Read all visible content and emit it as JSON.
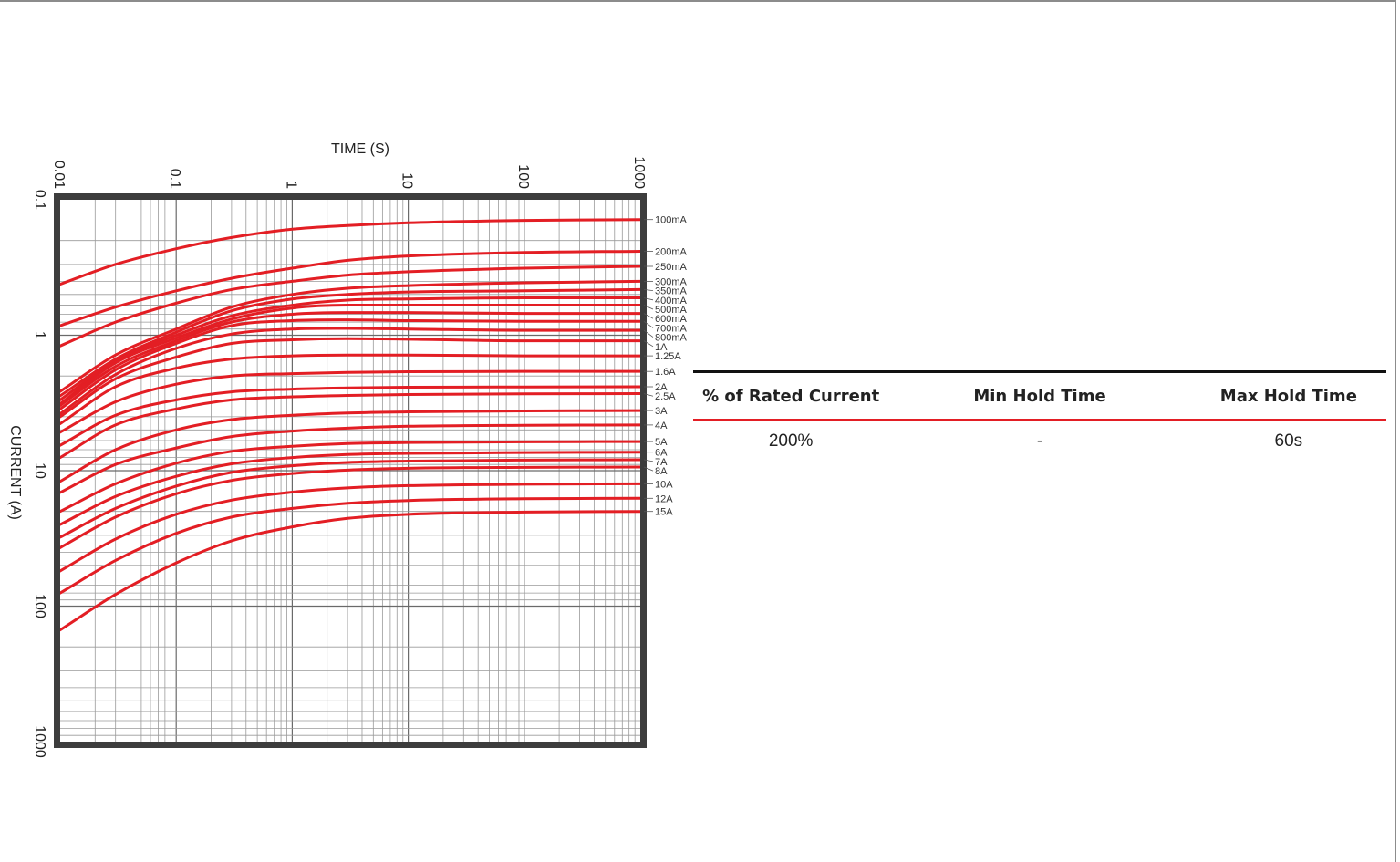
{
  "chart_data": {
    "type": "line",
    "xlabel": "TIME (S)",
    "ylabel": "CURRENT (A)",
    "x_scale": "log",
    "y_scale": "log",
    "y_inverted": true,
    "xlim": [
      0.01,
      1000
    ],
    "ylim": [
      0.1,
      1000
    ],
    "x_ticks": [
      "0.01",
      "0.1",
      "1",
      "10",
      "100",
      "1000"
    ],
    "y_ticks": [
      "0.1",
      "1",
      "10",
      "100",
      "1000"
    ],
    "grid": true,
    "curve_color": "#e31e24",
    "x": [
      0.01,
      0.03,
      0.1,
      0.3,
      1,
      3,
      10,
      100,
      1000
    ],
    "series": [
      {
        "name": "100mA",
        "values": [
          0.42,
          0.3,
          0.23,
          0.19,
          0.165,
          0.155,
          0.148,
          0.142,
          0.14
        ]
      },
      {
        "name": "200mA",
        "values": [
          0.85,
          0.62,
          0.47,
          0.38,
          0.32,
          0.28,
          0.26,
          0.245,
          0.24
        ]
      },
      {
        "name": "250mA",
        "values": [
          1.2,
          0.8,
          0.58,
          0.46,
          0.4,
          0.36,
          0.34,
          0.32,
          0.31
        ]
      },
      {
        "name": "300mA",
        "values": [
          2.6,
          1.4,
          0.9,
          0.62,
          0.5,
          0.45,
          0.43,
          0.41,
          0.4
        ]
      },
      {
        "name": "350mA",
        "values": [
          2.8,
          1.5,
          0.95,
          0.66,
          0.54,
          0.5,
          0.48,
          0.47,
          0.46
        ]
      },
      {
        "name": "400mA",
        "values": [
          3.0,
          1.55,
          1.0,
          0.72,
          0.6,
          0.55,
          0.54,
          0.53,
          0.53
        ]
      },
      {
        "name": "500mA",
        "values": [
          3.2,
          1.6,
          1.05,
          0.76,
          0.63,
          0.6,
          0.6,
          0.6,
          0.6
        ]
      },
      {
        "name": "600mA",
        "values": [
          3.3,
          1.7,
          1.1,
          0.8,
          0.7,
          0.68,
          0.68,
          0.69,
          0.69
        ]
      },
      {
        "name": "700mA",
        "values": [
          3.5,
          1.8,
          1.15,
          0.85,
          0.78,
          0.77,
          0.78,
          0.79,
          0.79
        ]
      },
      {
        "name": "800mA",
        "values": [
          3.8,
          1.95,
          1.25,
          0.98,
          0.9,
          0.89,
          0.9,
          0.92,
          0.92
        ]
      },
      {
        "name": "1A",
        "values": [
          4.0,
          2.1,
          1.45,
          1.15,
          1.08,
          1.06,
          1.07,
          1.1,
          1.1
        ]
      },
      {
        "name": "1.25A",
        "values": [
          4.5,
          2.4,
          1.75,
          1.5,
          1.42,
          1.4,
          1.4,
          1.42,
          1.42
        ]
      },
      {
        "name": "1.6A",
        "values": [
          5.2,
          3.1,
          2.3,
          2.0,
          1.92,
          1.88,
          1.86,
          1.85,
          1.85
        ]
      },
      {
        "name": "2A",
        "values": [
          6.5,
          3.9,
          3.0,
          2.62,
          2.5,
          2.45,
          2.42,
          2.41,
          2.4
        ]
      },
      {
        "name": "2.5A",
        "values": [
          8.0,
          4.6,
          3.5,
          3.0,
          2.85,
          2.78,
          2.74,
          2.71,
          2.7
        ]
      },
      {
        "name": "3A",
        "values": [
          12.0,
          7.0,
          5.0,
          4.2,
          3.9,
          3.75,
          3.68,
          3.62,
          3.6
        ]
      },
      {
        "name": "4A",
        "values": [
          14.5,
          9.0,
          6.8,
          5.6,
          5.1,
          4.85,
          4.7,
          4.62,
          4.6
        ]
      },
      {
        "name": "5A",
        "values": [
          20.0,
          12.5,
          8.8,
          7.2,
          6.6,
          6.3,
          6.2,
          6.12,
          6.1
        ]
      },
      {
        "name": "6A",
        "values": [
          25.0,
          15.5,
          11.0,
          8.9,
          8.0,
          7.6,
          7.45,
          7.35,
          7.3
        ]
      },
      {
        "name": "7A",
        "values": [
          31.0,
          19.0,
          13.0,
          10.3,
          9.2,
          8.7,
          8.5,
          8.35,
          8.3
        ]
      },
      {
        "name": "8A",
        "values": [
          37.0,
          22.0,
          14.8,
          11.8,
          10.5,
          9.9,
          9.6,
          9.45,
          9.4
        ]
      },
      {
        "name": "10A",
        "values": [
          55.0,
          32.0,
          21.0,
          16.5,
          14.4,
          13.4,
          12.9,
          12.6,
          12.5
        ]
      },
      {
        "name": "12A",
        "values": [
          80.0,
          46.0,
          29.0,
          22.0,
          19.0,
          17.4,
          16.6,
          16.1,
          16.0
        ]
      },
      {
        "name": "15A",
        "values": [
          150.0,
          82.0,
          48.0,
          33.0,
          26.0,
          22.5,
          21.0,
          20.2,
          20.0
        ]
      }
    ]
  },
  "rating_table": {
    "headers": [
      "% of Rated Current",
      "Min Hold Time",
      "Max Hold Time"
    ],
    "rows": [
      [
        "200%",
        "-",
        "60s"
      ]
    ]
  }
}
